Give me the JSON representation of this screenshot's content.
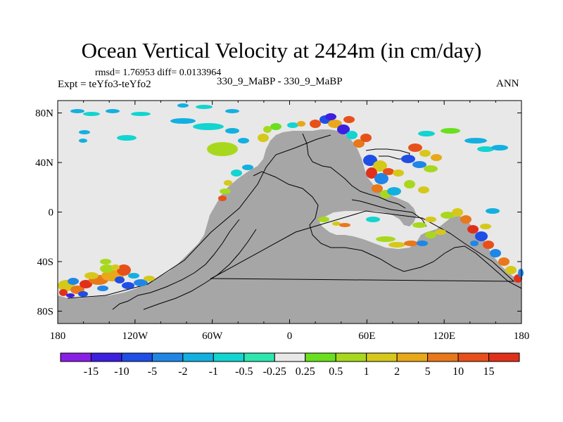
{
  "title": "Ocean Vertical Velocity at 2424m (in cm/day)",
  "stats": "rmsd= 1.76953 diff= 0.0133964",
  "expt": "Expt = teYfo3-teYfo2",
  "run": "330_9_MaBP - 330_9_MaBP",
  "season": "ANN",
  "chart_data": {
    "type": "heatmap",
    "projection": "cylindrical equidistant",
    "xlim": [
      -180,
      180
    ],
    "ylim": [
      -90,
      90
    ],
    "x_ticks": [
      {
        "value": -180,
        "label": "180"
      },
      {
        "value": -120,
        "label": "120W"
      },
      {
        "value": -60,
        "label": "60W"
      },
      {
        "value": 0,
        "label": "0"
      },
      {
        "value": 60,
        "label": "60E"
      },
      {
        "value": 120,
        "label": "120E"
      },
      {
        "value": 180,
        "label": "180"
      }
    ],
    "y_ticks": [
      {
        "value": 80,
        "label": "80N"
      },
      {
        "value": 40,
        "label": "40N"
      },
      {
        "value": 0,
        "label": "0"
      },
      {
        "value": -40,
        "label": "40S"
      },
      {
        "value": -80,
        "label": "80S"
      }
    ],
    "colorbar": {
      "levels": [
        "-15",
        "-10",
        "-5",
        "-2",
        "-1",
        "-0.5",
        "-0.25",
        "0.25",
        "0.5",
        "1",
        "2",
        "5",
        "10",
        "15"
      ],
      "colors": [
        "#8a1fe6",
        "#3c1fe0",
        "#1f4ee6",
        "#1f86e6",
        "#12b0e0",
        "#12d4d0",
        "#2ee6b0",
        "#e8e8e8",
        "#6adf1e",
        "#a8d81e",
        "#d6c81a",
        "#e8a81a",
        "#e8781a",
        "#e8501a",
        "#e0301a"
      ]
    },
    "land_color": "#a6a6a6",
    "grid": false
  }
}
